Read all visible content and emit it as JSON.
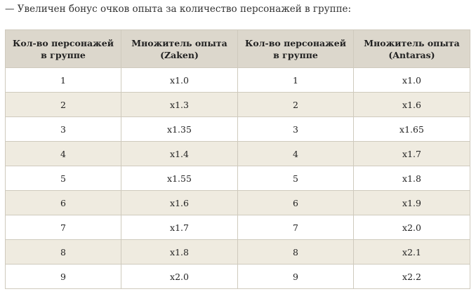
{
  "intro": "— Увеличен бонус очков опыта за количество персонажей в группе:",
  "colors": {
    "header_bg": "#dcd7cc",
    "row_alt_bg": "#efebe0",
    "border": "#cfcabd"
  },
  "table": {
    "headers": [
      "Кол-во персонажей в группе",
      "Множитель опыта (Zaken)",
      "Кол-во персонажей в группе",
      "Множитель опыта (Antaras)"
    ],
    "rows": [
      [
        "1",
        "x1.0",
        "1",
        "x1.0"
      ],
      [
        "2",
        "x1.3",
        "2",
        "x1.6"
      ],
      [
        "3",
        "x1.35",
        "3",
        "x1.65"
      ],
      [
        "4",
        "x1.4",
        "4",
        "x1.7"
      ],
      [
        "5",
        "x1.55",
        "5",
        "x1.8"
      ],
      [
        "6",
        "x1.6",
        "6",
        "x1.9"
      ],
      [
        "7",
        "x1.7",
        "7",
        "x2.0"
      ],
      [
        "8",
        "x1.8",
        "8",
        "x2.1"
      ],
      [
        "9",
        "x2.0",
        "9",
        "x2.2"
      ]
    ]
  }
}
